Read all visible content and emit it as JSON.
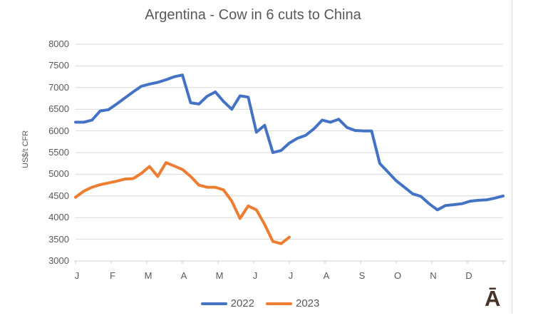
{
  "watermark": "Ā",
  "colors": {
    "series_2022": "#4472C4",
    "series_2023": "#ED7D31",
    "gridline": "#d9d9d9",
    "axis_line": "#d0d0d0",
    "label_text": "#595959",
    "title_text": "#595959",
    "watermark_text": "#46332a"
  },
  "chart_data": {
    "type": "line",
    "title": "Argentina - Cow in 6 cuts to China",
    "xlabel": "",
    "ylabel": "US$/t CFR",
    "ylim": [
      3000,
      8000
    ],
    "ytick_step": 500,
    "yticks": [
      3000,
      3500,
      4000,
      4500,
      5000,
      5500,
      6000,
      6500,
      7000,
      7500,
      8000
    ],
    "x_unit": "weekly points spanning Jan-Dec",
    "month_labels": [
      "J",
      "F",
      "M",
      "A",
      "M",
      "J",
      "J",
      "A",
      "S",
      "O",
      "N",
      "D"
    ],
    "grid": true,
    "legend_position": "bottom-center",
    "series": [
      {
        "name": "2022",
        "color": "#4472C4",
        "values": [
          6200,
          6200,
          6250,
          6460,
          6490,
          6620,
          6760,
          6900,
          7030,
          7080,
          7120,
          7180,
          7250,
          7290,
          6650,
          6620,
          6800,
          6900,
          6680,
          6500,
          6810,
          6780,
          5970,
          6130,
          5500,
          5550,
          5720,
          5830,
          5900,
          6050,
          6250,
          6200,
          6270,
          6080,
          6010,
          6000,
          6000,
          5250,
          5050,
          4850,
          4700,
          4550,
          4490,
          4320,
          4180,
          4280,
          4300,
          4320,
          4380,
          4400,
          4410,
          4450,
          4500
        ]
      },
      {
        "name": "2023",
        "color": "#ED7D31",
        "values": [
          4470,
          4610,
          4700,
          4760,
          4800,
          4840,
          4890,
          4900,
          5020,
          5180,
          4950,
          5270,
          5190,
          5110,
          4950,
          4750,
          4700,
          4700,
          4640,
          4380,
          3980,
          4270,
          4180,
          3840,
          3450,
          3400,
          3550
        ]
      }
    ]
  }
}
